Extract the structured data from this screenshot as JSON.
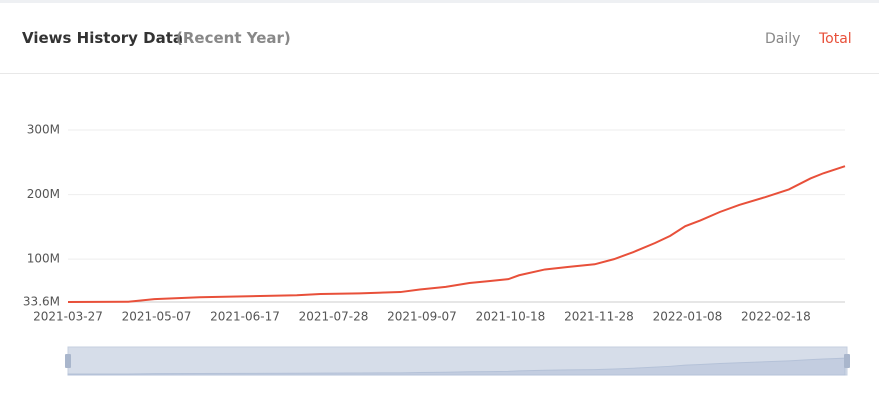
{
  "header": {
    "title": "Views History Data",
    "subtitle": "(Recent Year)",
    "tabs": [
      "Daily",
      "Total"
    ]
  },
  "chart_data": {
    "type": "line",
    "color": "#e8503a",
    "grid": true,
    "x": [
      "2021-03-27",
      "2021-04-24",
      "2021-05-06",
      "2021-05-27",
      "2021-06-19",
      "2021-07-11",
      "2021-07-22",
      "2021-08-09",
      "2021-08-28",
      "2021-09-06",
      "2021-09-18",
      "2021-09-29",
      "2021-10-08",
      "2021-10-17",
      "2021-10-22",
      "2021-11-03",
      "2021-11-14",
      "2021-11-26",
      "2021-12-05",
      "2021-12-14",
      "2021-12-24",
      "2021-12-31",
      "2022-01-07",
      "2022-01-14",
      "2022-01-23",
      "2022-02-01",
      "2022-02-13",
      "2022-02-24",
      "2022-03-06",
      "2022-03-12",
      "2022-03-22"
    ],
    "values": [
      33600000,
      34000000,
      38000000,
      41000000,
      42500000,
      44000000,
      46000000,
      47000000,
      49000000,
      53000000,
      57000000,
      63000000,
      66000000,
      69000000,
      75000000,
      84000000,
      88000000,
      92000000,
      100000000,
      111000000,
      125000000,
      136000000,
      151000000,
      160000000,
      173000000,
      184000000,
      196000000,
      208000000,
      225000000,
      233000000,
      244000000
    ],
    "xlim": [
      "2021-03-27",
      "2022-03-22"
    ],
    "xticks": [
      "2021-03-27",
      "2021-05-07",
      "2021-06-17",
      "2021-07-28",
      "2021-09-07",
      "2021-10-18",
      "2021-11-28",
      "2022-01-08",
      "2022-02-18"
    ],
    "ylim": [
      33600000,
      300000000
    ],
    "yticks": [
      {
        "value": 33600000,
        "label": "33.6M"
      },
      {
        "value": 100000000,
        "label": "100M"
      },
      {
        "value": 200000000,
        "label": "200M"
      },
      {
        "value": 300000000,
        "label": "300M"
      }
    ]
  }
}
